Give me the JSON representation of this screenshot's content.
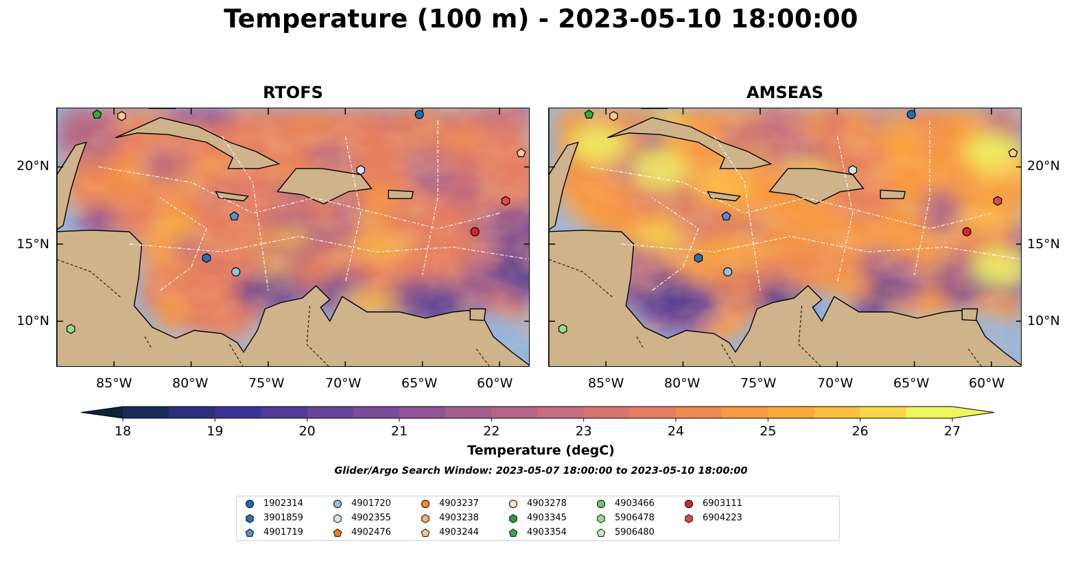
{
  "title": "Temperature (100 m) - 2023-05-10 18:00:00",
  "panels": [
    {
      "title": "RTOFS",
      "cmap_bias": 0.0
    },
    {
      "title": "AMSEAS",
      "cmap_bias": 0.6
    }
  ],
  "lon_ticks": [
    "85°W",
    "80°W",
    "75°W",
    "70°W",
    "65°W",
    "60°W"
  ],
  "lat_ticks": [
    "20°N",
    "15°N",
    "10°N"
  ],
  "colorbar": {
    "label": "Temperature (degC)",
    "min": 18,
    "max": 27,
    "ticks": [
      "18",
      "19",
      "20",
      "21",
      "22",
      "23",
      "24",
      "25",
      "26",
      "27"
    ],
    "colors": [
      "#0c2337",
      "#182b56",
      "#2a2f7e",
      "#3b3396",
      "#503a98",
      "#66449a",
      "#7b4c98",
      "#8f5595",
      "#a35e8f",
      "#b56587",
      "#c66c7d",
      "#d77570",
      "#e57f61",
      "#ef8a50",
      "#f79a43",
      "#fbaa3c",
      "#fdbf40",
      "#f8d84a",
      "#eef55e"
    ]
  },
  "search_window": "Glider/Argo Search Window: 2023-05-07 18:00:00 to 2023-05-10 18:00:00",
  "legend": [
    {
      "id": "1902314",
      "color": "#1f6fb4",
      "marker": "circle"
    },
    {
      "id": "3901859",
      "color": "#2a72b8",
      "marker": "hexagon"
    },
    {
      "id": "4901719",
      "color": "#5a8fd0",
      "marker": "pentagon"
    },
    {
      "id": "4901720",
      "color": "#8ec3ea",
      "marker": "circle"
    },
    {
      "id": "4902355",
      "color": "#cfe6f7",
      "marker": "hexagon"
    },
    {
      "id": "4902476",
      "color": "#f07e1a",
      "marker": "pentagon"
    },
    {
      "id": "4903237",
      "color": "#f58b2c",
      "marker": "circle"
    },
    {
      "id": "4903238",
      "color": "#fbb06a",
      "marker": "hexagon"
    },
    {
      "id": "4903244",
      "color": "#fcc892",
      "marker": "pentagon"
    },
    {
      "id": "4903278",
      "color": "#fde0c2",
      "marker": "circle"
    },
    {
      "id": "4903345",
      "color": "#2ca02c",
      "marker": "hexagon"
    },
    {
      "id": "4903354",
      "color": "#3da83d",
      "marker": "pentagon"
    },
    {
      "id": "4903466",
      "color": "#6ccc6c",
      "marker": "circle"
    },
    {
      "id": "5906478",
      "color": "#97df8f",
      "marker": "hexagon"
    },
    {
      "id": "5906480",
      "color": "#c8efc0",
      "marker": "pentagon"
    },
    {
      "id": "6903111",
      "color": "#d62728",
      "marker": "circle"
    },
    {
      "id": "6904223",
      "color": "#e04848",
      "marker": "hexagon"
    }
  ]
}
